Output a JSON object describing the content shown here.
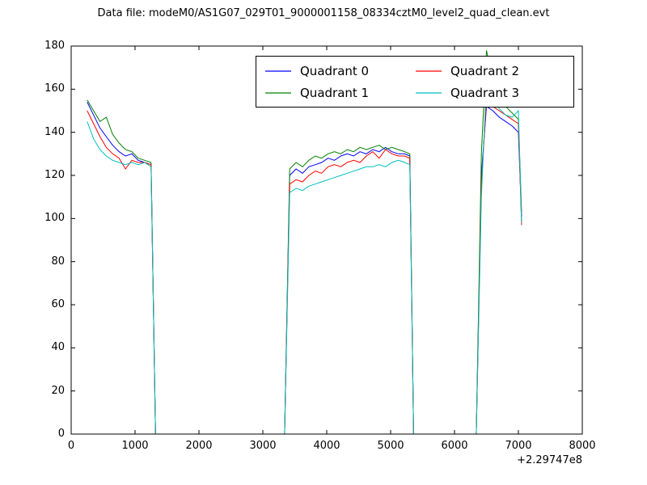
{
  "chart_data": {
    "type": "line",
    "title": "Data file: modeM0/AS1G07_029T01_9000001158_08334cztM0_level2_quad_clean.evt",
    "xlabel": "",
    "ylabel": "",
    "xlim": [
      0,
      8000
    ],
    "ylim": [
      0,
      180
    ],
    "xticks": [
      0,
      1000,
      2000,
      3000,
      4000,
      5000,
      6000,
      7000,
      8000
    ],
    "yticks": [
      0,
      20,
      40,
      60,
      80,
      100,
      120,
      140,
      160,
      180
    ],
    "x_offset_label": "+2.29747e8",
    "grid": "off",
    "legend_position": "upper center, 2 columns",
    "x": [
      250,
      350,
      450,
      550,
      650,
      750,
      850,
      950,
      1050,
      1150,
      1250,
      1320,
      3340,
      3420,
      3520,
      3620,
      3720,
      3820,
      3920,
      4020,
      4120,
      4220,
      4320,
      4420,
      4520,
      4620,
      4720,
      4820,
      4920,
      5020,
      5120,
      5220,
      5300,
      5360,
      6340,
      6420,
      6500,
      6600,
      6700,
      6800,
      6900,
      7000,
      7050
    ],
    "series": [
      {
        "name": "Quadrant 0",
        "color": "#0000ff",
        "values": [
          154,
          148,
          142,
          138,
          134,
          131,
          129,
          130,
          127,
          126,
          125,
          0,
          0,
          120,
          123,
          121,
          124,
          125,
          126,
          128,
          127,
          129,
          130,
          129,
          131,
          130,
          132,
          131,
          133,
          131,
          130,
          130,
          129,
          0,
          0,
          120,
          152,
          150,
          147,
          145,
          143,
          140,
          101
        ]
      },
      {
        "name": "Quadrant 1",
        "color": "#008000",
        "values": [
          155,
          150,
          145,
          147,
          139,
          135,
          132,
          131,
          128,
          127,
          126,
          0,
          0,
          123,
          126,
          124,
          127,
          129,
          128,
          130,
          131,
          130,
          132,
          131,
          133,
          132,
          133,
          134,
          132,
          133,
          132,
          131,
          130,
          0,
          0,
          130,
          178,
          164,
          157,
          152,
          149,
          146,
          103
        ]
      },
      {
        "name": "Quadrant 2",
        "color": "#ff0000",
        "values": [
          150,
          144,
          138,
          133,
          130,
          128,
          123,
          127,
          126,
          126,
          125,
          0,
          0,
          116,
          118,
          117,
          120,
          122,
          121,
          124,
          125,
          124,
          126,
          127,
          126,
          129,
          131,
          128,
          132,
          130,
          129,
          129,
          128,
          0,
          0,
          115,
          155,
          152,
          150,
          148,
          146,
          144,
          97
        ]
      },
      {
        "name": "Quadrant 3",
        "color": "#00bfbf",
        "values": [
          145,
          137,
          132,
          129,
          127,
          126,
          125,
          126,
          125,
          126,
          124,
          0,
          0,
          112,
          114,
          113,
          115,
          116,
          117,
          118,
          119,
          120,
          121,
          122,
          123,
          124,
          124,
          125,
          124,
          126,
          127,
          126,
          125,
          0,
          0,
          110,
          163,
          156,
          151,
          148,
          147,
          150,
          98
        ]
      }
    ]
  }
}
